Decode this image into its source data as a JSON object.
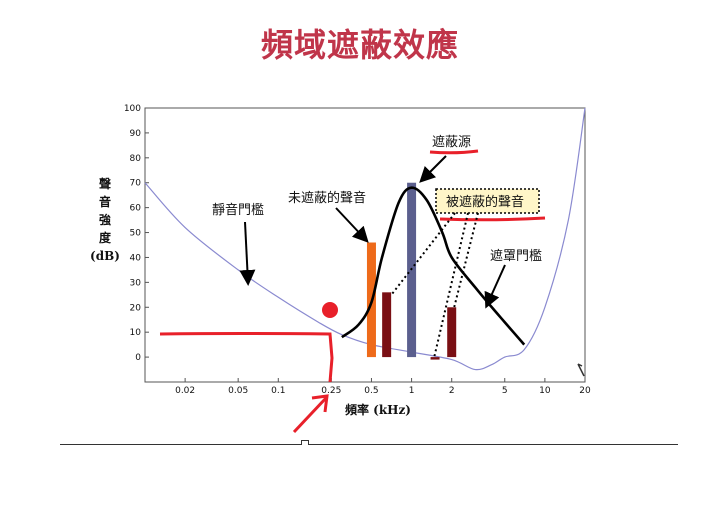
{
  "slide": {
    "title": "頻域遮蔽效應"
  },
  "chart_data": {
    "type": "bar",
    "x_scale": "log",
    "xlim": [
      0.01,
      20
    ],
    "ylim": [
      -10,
      100
    ],
    "xlabel": "頻率 (kHz)",
    "ylabel": [
      "聲",
      "音",
      "強",
      "度",
      "(dB)"
    ],
    "x_ticks": [
      {
        "value": 0.02,
        "label": "0.02"
      },
      {
        "value": 0.05,
        "label": "0.05"
      },
      {
        "value": 0.1,
        "label": "0.1"
      },
      {
        "value": 0.25,
        "label": "0.25"
      },
      {
        "value": 0.5,
        "label": "0.5"
      },
      {
        "value": 1,
        "label": "1"
      },
      {
        "value": 2,
        "label": "2"
      },
      {
        "value": 5,
        "label": "5"
      },
      {
        "value": 10,
        "label": "10"
      },
      {
        "value": 20,
        "label": "20"
      }
    ],
    "y_ticks": [
      0,
      10,
      20,
      30,
      40,
      50,
      60,
      70,
      80,
      90,
      100
    ],
    "threshold_quiet": {
      "x": [
        0.01,
        0.02,
        0.05,
        0.1,
        0.2,
        0.3,
        0.5,
        1,
        2,
        3,
        4,
        5,
        7,
        10,
        15,
        20
      ],
      "y": [
        70,
        52,
        35,
        24,
        14,
        9,
        5,
        2,
        -1,
        -5,
        -3,
        0,
        3,
        20,
        55,
        100
      ]
    },
    "masking_curve": {
      "x": [
        0.3,
        0.4,
        0.5,
        0.6,
        0.8,
        1,
        1.3,
        1.7,
        2,
        3,
        4,
        5,
        7
      ],
      "y": [
        8,
        13,
        22,
        40,
        62,
        68,
        63,
        50,
        40,
        28,
        20,
        14,
        5
      ]
    },
    "bars": [
      {
        "x": 0.5,
        "value": 46,
        "color": "#ee6a1a",
        "role": "unmasked"
      },
      {
        "x": 0.65,
        "value": 26,
        "color": "#7a0f14",
        "role": "masked"
      },
      {
        "x": 1,
        "value": 70,
        "color": "#5b5f8e",
        "role": "masker"
      },
      {
        "x": 1.5,
        "value": -1,
        "color": "#7a0f14",
        "role": "masked"
      },
      {
        "x": 2,
        "value": 20,
        "color": "#7a0f14",
        "role": "masked"
      }
    ],
    "annotations": {
      "quiet": "靜音門檻",
      "unmasked": "未遮蔽的聲音",
      "masker": "遮蔽源",
      "masked": "被遮蔽的聲音",
      "mask_threshold": "遮罩門檻"
    },
    "colors": {
      "threshold_line": "#8a8ad0",
      "masking_line": "#000000",
      "highlight_red": "#e8202a",
      "masked_box_fill": "#fff6c8"
    }
  }
}
